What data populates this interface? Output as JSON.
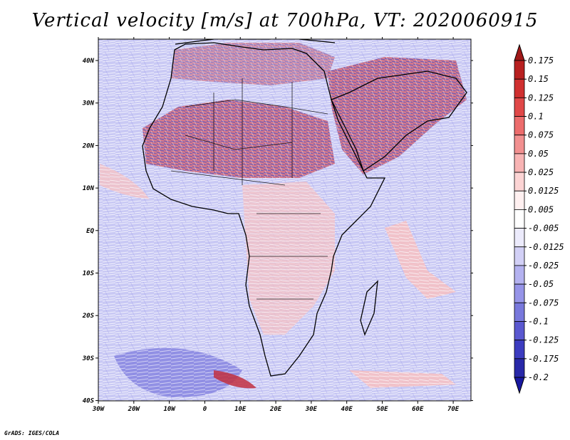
{
  "title": "Vertical velocity [m/s] at 700hPa, VT: 2020060915",
  "credit": "GrADS: IGES/COLA",
  "map": {
    "lon_labels": [
      "30W",
      "20W",
      "10W",
      "0",
      "10E",
      "20E",
      "30E",
      "40E",
      "50E",
      "60E",
      "70E"
    ],
    "lat_labels": [
      "40N",
      "30N",
      "20N",
      "10N",
      "EQ",
      "10S",
      "20S",
      "30S",
      "40S"
    ],
    "lon_range": [
      -30,
      75
    ],
    "lat_range": [
      -40,
      45
    ]
  },
  "colorbar": {
    "levels": [
      "0.175",
      "0.15",
      "0.125",
      "0.1",
      "0.075",
      "0.05",
      "0.025",
      "0.0125",
      "0.005",
      "-0.005",
      "-0.0125",
      "-0.025",
      "-0.05",
      "-0.075",
      "-0.1",
      "-0.125",
      "-0.175",
      "-0.2"
    ],
    "colors": [
      "#a01818",
      "#b82020",
      "#d03030",
      "#e04848",
      "#ec6c6c",
      "#f29090",
      "#f8b4b4",
      "#fcd4d4",
      "#fff0f0",
      "#ffffff",
      "#ecebfc",
      "#d2d0f6",
      "#b4b2f0",
      "#9694e8",
      "#7878dc",
      "#5a58d0",
      "#3c3cc0",
      "#2828a8",
      "#1818a0"
    ]
  }
}
